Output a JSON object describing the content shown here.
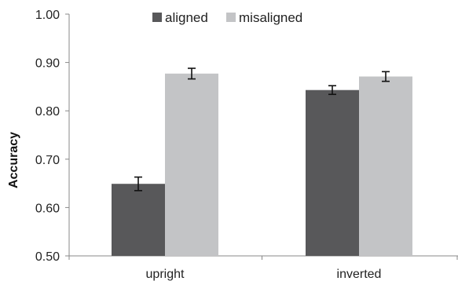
{
  "chart_data": {
    "type": "bar",
    "categories": [
      "upright",
      "inverted"
    ],
    "series": [
      {
        "name": "aligned",
        "color": "#58585a",
        "values": [
          0.649,
          0.843
        ],
        "error": [
          0.014,
          0.009
        ]
      },
      {
        "name": "misaligned",
        "color": "#c3c4c6",
        "values": [
          0.877,
          0.871
        ],
        "error": [
          0.011,
          0.01
        ]
      }
    ],
    "title": "",
    "xlabel": "",
    "ylabel": "Accuracy",
    "ylim": [
      0.5,
      1.0
    ],
    "yticks": [
      "0.50",
      "0.60",
      "0.70",
      "0.80",
      "0.90",
      "1.00"
    ],
    "grid": false,
    "legend_position": "top-center"
  }
}
